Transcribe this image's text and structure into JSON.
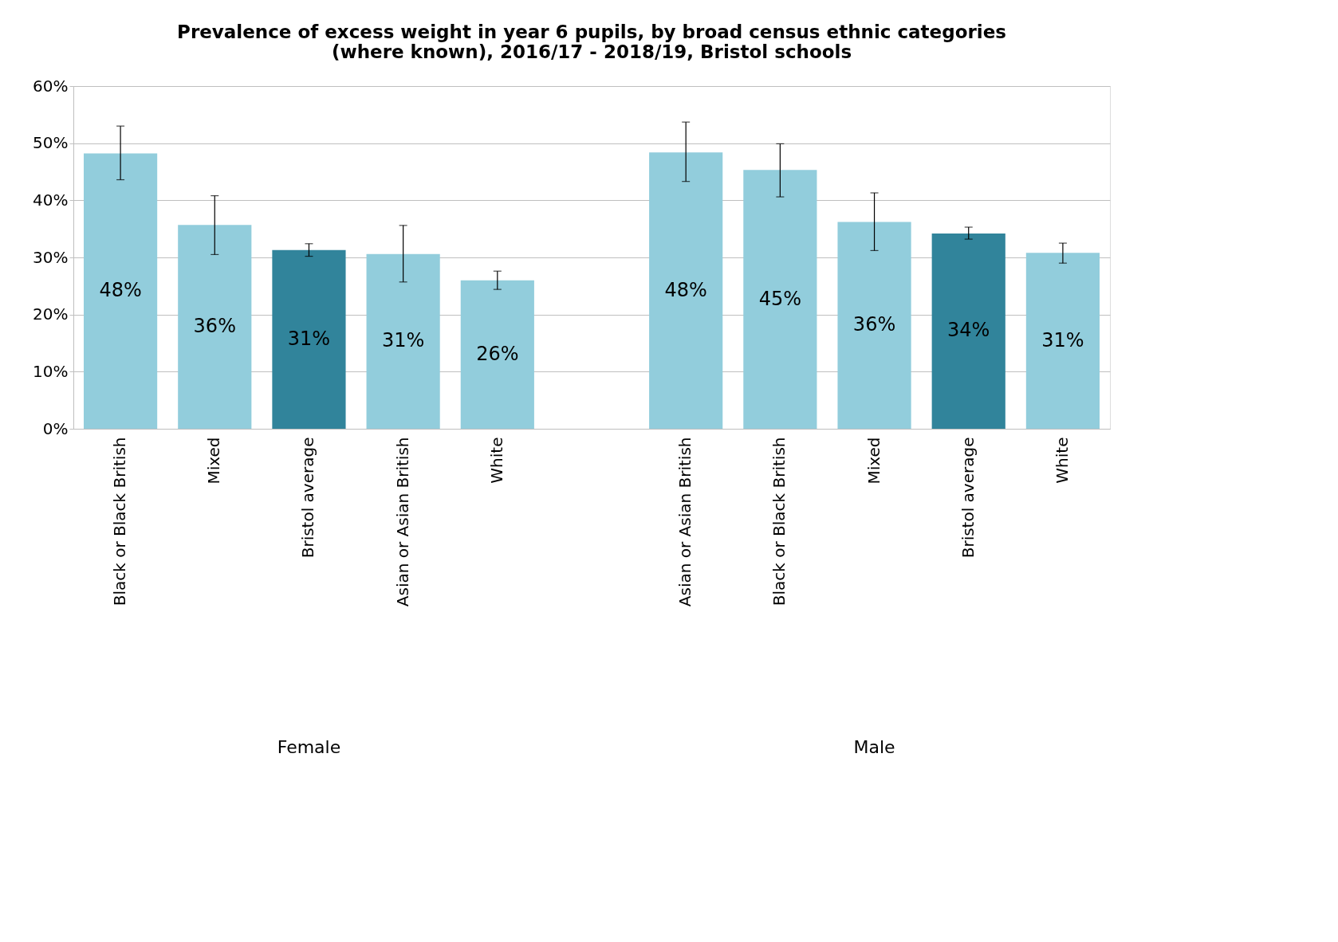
{
  "chart_data": {
    "type": "bar",
    "title": "Prevalence of excess weight in year 6 pupils, by broad census ethnic categories (where known), 2016/17 - 2018/19, Bristol schools",
    "categories": [
      "Black or Black British",
      "Mixed",
      "Bristol average",
      "Asian or Asian British",
      "White",
      null,
      "Asian or Asian British",
      "Black or Black British",
      "Mixed",
      "Bristol average",
      "White"
    ],
    "values": [
      48.2,
      35.7,
      31.3,
      30.6,
      26.0,
      null,
      48.4,
      45.3,
      36.2,
      34.2,
      30.8
    ],
    "colors": [
      "#92cddc",
      "#92cddc",
      "#31849b",
      "#92cddc",
      "#92cddc",
      null,
      "#92cddc",
      "#92cddc",
      "#92cddc",
      "#31849b",
      "#92cddc"
    ],
    "errors": [
      [
        43.6,
        53.0
      ],
      [
        30.5,
        40.8
      ],
      [
        30.2,
        32.4
      ],
      [
        25.7,
        35.6
      ],
      [
        24.4,
        27.6
      ],
      null,
      [
        43.3,
        53.7
      ],
      [
        40.6,
        49.9
      ],
      [
        31.2,
        41.3
      ],
      [
        33.2,
        35.3
      ],
      [
        29.0,
        32.5
      ]
    ],
    "value_labels": [
      "48%",
      "36%",
      "31%",
      "31%",
      "26%",
      null,
      "48%",
      "45%",
      "36%",
      "34%",
      "31%"
    ],
    "annotations": [
      "Female",
      "Male"
    ],
    "ylim": [
      0,
      60
    ],
    "yticks": [
      {
        "value": 0,
        "label": "0%"
      },
      {
        "value": 10,
        "label": "10%"
      },
      {
        "value": 20,
        "label": "20%"
      },
      {
        "value": 30,
        "label": "30%"
      },
      {
        "value": 40,
        "label": "40%"
      },
      {
        "value": 50,
        "label": "50%"
      },
      {
        "value": 60,
        "label": "60%"
      }
    ],
    "grid": "y"
  }
}
